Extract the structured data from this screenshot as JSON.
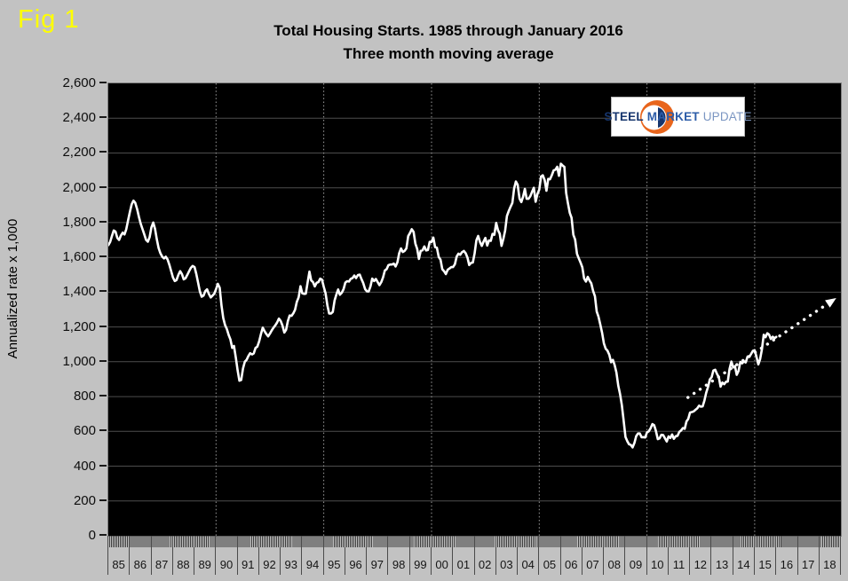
{
  "fig_label": "Fig 1",
  "title": "Total Housing Starts. 1985 through January 2016",
  "subtitle": "Three month moving average",
  "logo": {
    "steel": "STEEL",
    "market": "MARKET",
    "update": "UPDATE"
  },
  "colors": {
    "background": "#c2c2c2",
    "plot_background": "#000000",
    "line": "#ffffff",
    "h_gridline": "#4d4d4d",
    "v_gridline": "#9e9e9e",
    "fig_label": "#ffff00",
    "logo_orange": "#e8651c",
    "logo_navy": "#16356d"
  },
  "chart_data": {
    "type": "line",
    "title": "Total Housing Starts. 1985 through January 2016",
    "subtitle": "Three month moving average",
    "ylabel": "Annualized rate x 1,000",
    "ylim": [
      0,
      2600
    ],
    "ytick_step": 200,
    "ytick_labels": [
      "2,600",
      "2,400",
      "2,200",
      "2,000",
      "1,800",
      "1,600",
      "1,400",
      "1,200",
      "1,000",
      "800",
      "600",
      "400",
      "200",
      "0"
    ],
    "xlim_years": [
      1985,
      2019
    ],
    "year_labels": [
      "85",
      "86",
      "87",
      "88",
      "89",
      "90",
      "91",
      "92",
      "93",
      "94",
      "95",
      "96",
      "97",
      "98",
      "99",
      "00",
      "01",
      "02",
      "03",
      "04",
      "05",
      "06",
      "07",
      "08",
      "09",
      "10",
      "11",
      "12",
      "13",
      "14",
      "15",
      "16",
      "17",
      "18"
    ],
    "vgrid_years": [
      1990,
      1995,
      2000,
      2005,
      2010,
      2015
    ],
    "grid": true,
    "legend": "none",
    "x_start_year": 1985,
    "points_per_year": 12,
    "series": [
      {
        "name": "Total housing starts, 3-month moving average (thousands, annualized)",
        "color": "#ffffff",
        "monthly_values": [
          1670,
          1688,
          1722,
          1755,
          1748,
          1712,
          1700,
          1726,
          1742,
          1732,
          1762,
          1812,
          1862,
          1905,
          1926,
          1914,
          1878,
          1834,
          1794,
          1764,
          1734,
          1700,
          1690,
          1716,
          1772,
          1800,
          1764,
          1704,
          1654,
          1624,
          1604,
          1594,
          1604,
          1588,
          1558,
          1520,
          1484,
          1464,
          1470,
          1500,
          1521,
          1504,
          1474,
          1480,
          1500,
          1521,
          1540,
          1551,
          1544,
          1504,
          1454,
          1404,
          1374,
          1380,
          1406,
          1416,
          1390,
          1370,
          1380,
          1391,
          1417,
          1448,
          1426,
          1325,
          1252,
          1212,
          1188,
          1154,
          1128,
          1080,
          1091,
          1023,
          951,
          891,
          895,
          962,
          1000,
          1011,
          1033,
          1049,
          1042,
          1048,
          1080,
          1087,
          1118,
          1160,
          1196,
          1176,
          1160,
          1146,
          1162,
          1180,
          1196,
          1210,
          1226,
          1248,
          1234,
          1208,
          1168,
          1184,
          1234,
          1266,
          1264,
          1278,
          1299,
          1345,
          1370,
          1434,
          1394,
          1390,
          1391,
          1455,
          1518,
          1467,
          1458,
          1433,
          1454,
          1458,
          1478,
          1472,
          1431,
          1393,
          1324,
          1277,
          1277,
          1287,
          1352,
          1386,
          1415,
          1385,
          1397,
          1417,
          1455,
          1463,
          1461,
          1477,
          1481,
          1496,
          1481,
          1499,
          1501,
          1475,
          1452,
          1417,
          1405,
          1404,
          1433,
          1478,
          1464,
          1476,
          1458,
          1440,
          1458,
          1485,
          1525,
          1532,
          1555,
          1559,
          1559,
          1564,
          1548,
          1572,
          1625,
          1651,
          1631,
          1637,
          1652,
          1722,
          1740,
          1762,
          1746,
          1679,
          1649,
          1591,
          1638,
          1641,
          1663,
          1640,
          1642,
          1689,
          1689,
          1714,
          1659,
          1656,
          1602,
          1587,
          1532,
          1521,
          1504,
          1529,
          1536,
          1544,
          1544,
          1561,
          1605,
          1621,
          1615,
          1630,
          1637,
          1624,
          1600,
          1556,
          1568,
          1570,
          1623,
          1698,
          1723,
          1688,
          1666,
          1691,
          1712,
          1668,
          1697,
          1695,
          1735,
          1730,
          1798,
          1757,
          1736,
          1666,
          1707,
          1754,
          1838,
          1866,
          1890,
          1913,
          1996,
          2036,
          2017,
          1938,
          1918,
          1949,
          1994,
          1937,
          1937,
          1951,
          1977,
          2000,
          1920,
          1965,
          1989,
          2064,
          2072,
          2044,
          1983,
          2051,
          2049,
          2072,
          2100,
          2104,
          2121,
          2069,
          2138,
          2128,
          2120,
          1970,
          1911,
          1855,
          1827,
          1730,
          1702,
          1620,
          1594,
          1570,
          1543,
          1479,
          1461,
          1488,
          1467,
          1451,
          1406,
          1377,
          1289,
          1259,
          1215,
          1166,
          1106,
          1075,
          1064,
          1040,
          997,
          1011,
          981,
          938,
          862,
          814,
          751,
          664,
          568,
          544,
          526,
          522,
          508,
          534,
          573,
          588,
          588,
          566,
          567,
          565,
          594,
          600,
          618,
          642,
          635,
          602,
          555,
          560,
          580,
          579,
          561,
          542,
          571,
          562,
          582,
          557,
          572,
          574,
          597,
          605,
          619,
          615,
          657,
          672,
          708,
          711,
          715,
          724,
          732,
          748,
          742,
          744,
          777,
          822,
          856,
          899,
          911,
          950,
          954,
          930,
          912,
          857,
          881,
          871,
          885,
          886,
          959,
          1001,
          967,
          975,
          925,
          947,
          999,
          991,
          1003,
          996,
          1030,
          1028,
          1045,
          1063,
          1066,
          1027,
          985,
          1015,
          1069,
          1155,
          1141,
          1164,
          1156,
          1131,
          1144,
          1135,
          1143
        ]
      }
    ],
    "projection_arrow": {
      "style": "white-dotted-arrow",
      "from_year": 2011.9,
      "from_value": 795,
      "to_year": 2018.65,
      "to_value": 1355
    }
  }
}
